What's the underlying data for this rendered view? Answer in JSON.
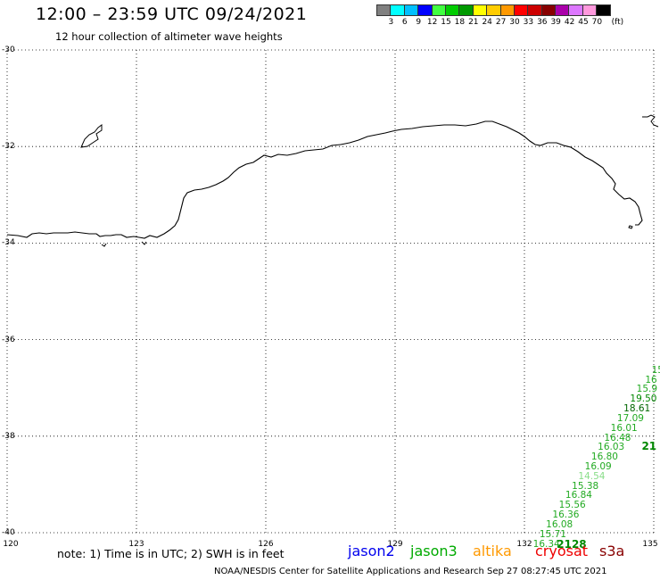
{
  "header": {
    "title": "12:00 – 23:59 UTC 09/24/2021",
    "subtitle": "12 hour collection of altimeter wave heights"
  },
  "colorbar": {
    "unit": "(ft)",
    "colors": [
      "#808080",
      "#00ffff",
      "#00bfff",
      "#0000ff",
      "#40ff40",
      "#00cc00",
      "#009900",
      "#ffff00",
      "#ffcc00",
      "#ff9900",
      "#ff0000",
      "#cc0000",
      "#880000",
      "#aa00aa",
      "#dd77ff",
      "#ff99dd",
      "#000000"
    ],
    "labels": [
      "3",
      "6",
      "9",
      "12",
      "15",
      "18",
      "21",
      "24",
      "27",
      "30",
      "33",
      "36",
      "39",
      "42",
      "45",
      "70"
    ]
  },
  "axes": {
    "y_ticks": [
      "-30",
      "-32",
      "-34",
      "-36",
      "-38",
      "-40"
    ],
    "y_values": [
      -30,
      -32,
      -34,
      -36,
      -38,
      -40
    ],
    "x_ticks": [
      "120",
      "123",
      "126",
      "129",
      "132",
      "135"
    ],
    "x_values": [
      120,
      123,
      126,
      129,
      132,
      135
    ]
  },
  "swh_readings": [
    {
      "text": "15",
      "color": "#22aa22",
      "lon": 134.95,
      "lat": -36.65
    },
    {
      "text": "16",
      "color": "#22aa22",
      "lon": 134.8,
      "lat": -36.85
    },
    {
      "text": "15.9",
      "color": "#22aa22",
      "lon": 134.6,
      "lat": -37.05
    },
    {
      "text": "19.50",
      "color": "#008800",
      "lon": 134.45,
      "lat": -37.25
    },
    {
      "text": "18.61",
      "color": "#006600",
      "lon": 134.3,
      "lat": -37.45
    },
    {
      "text": "17.09",
      "color": "#22aa22",
      "lon": 134.15,
      "lat": -37.65
    },
    {
      "text": "16.01",
      "color": "#22aa22",
      "lon": 134.0,
      "lat": -37.85
    },
    {
      "text": "16.48",
      "color": "#22aa22",
      "lon": 133.85,
      "lat": -38.05
    },
    {
      "text": "16.03",
      "color": "#22aa22",
      "lon": 133.7,
      "lat": -38.25
    },
    {
      "text": "16.80",
      "color": "#22aa22",
      "lon": 133.55,
      "lat": -38.45
    },
    {
      "text": "16.09",
      "color": "#22aa22",
      "lon": 133.4,
      "lat": -38.65
    },
    {
      "text": "14.54",
      "color": "#88dd88",
      "lon": 133.25,
      "lat": -38.85
    },
    {
      "text": "15.38",
      "color": "#22aa22",
      "lon": 133.1,
      "lat": -39.05
    },
    {
      "text": "16.84",
      "color": "#22aa22",
      "lon": 132.95,
      "lat": -39.25
    },
    {
      "text": "15.56",
      "color": "#22aa22",
      "lon": 132.8,
      "lat": -39.45
    },
    {
      "text": "16.36",
      "color": "#22aa22",
      "lon": 132.65,
      "lat": -39.65
    },
    {
      "text": "16.08",
      "color": "#22aa22",
      "lon": 132.5,
      "lat": -39.85
    },
    {
      "text": "15.71",
      "color": "#22aa22",
      "lon": 132.35,
      "lat": -40.05
    },
    {
      "text": "16.34",
      "color": "#22aa22",
      "lon": 132.2,
      "lat": -40.25
    }
  ],
  "pass_labels": [
    {
      "text": "2128",
      "color": "#008800",
      "lon": 132.75,
      "lat": -40.25
    },
    {
      "text": "21",
      "color": "#008800",
      "lon": 134.72,
      "lat": -38.22
    }
  ],
  "footer": {
    "note": "note:  1) Time is in UTC;  2) SWH is in feet",
    "satellites": [
      {
        "name": "jason2",
        "color": "#0000ee"
      },
      {
        "name": "jason3",
        "color": "#00aa00"
      },
      {
        "name": "altika",
        "color": "#ff9900"
      },
      {
        "name": "cryosat",
        "color": "#ee0000"
      },
      {
        "name": "s3a",
        "color": "#880000"
      }
    ],
    "credit": "NOAA/NESDIS Center for Satellite Applications and Research    Sep 27 08:27:45 UTC 2021"
  }
}
